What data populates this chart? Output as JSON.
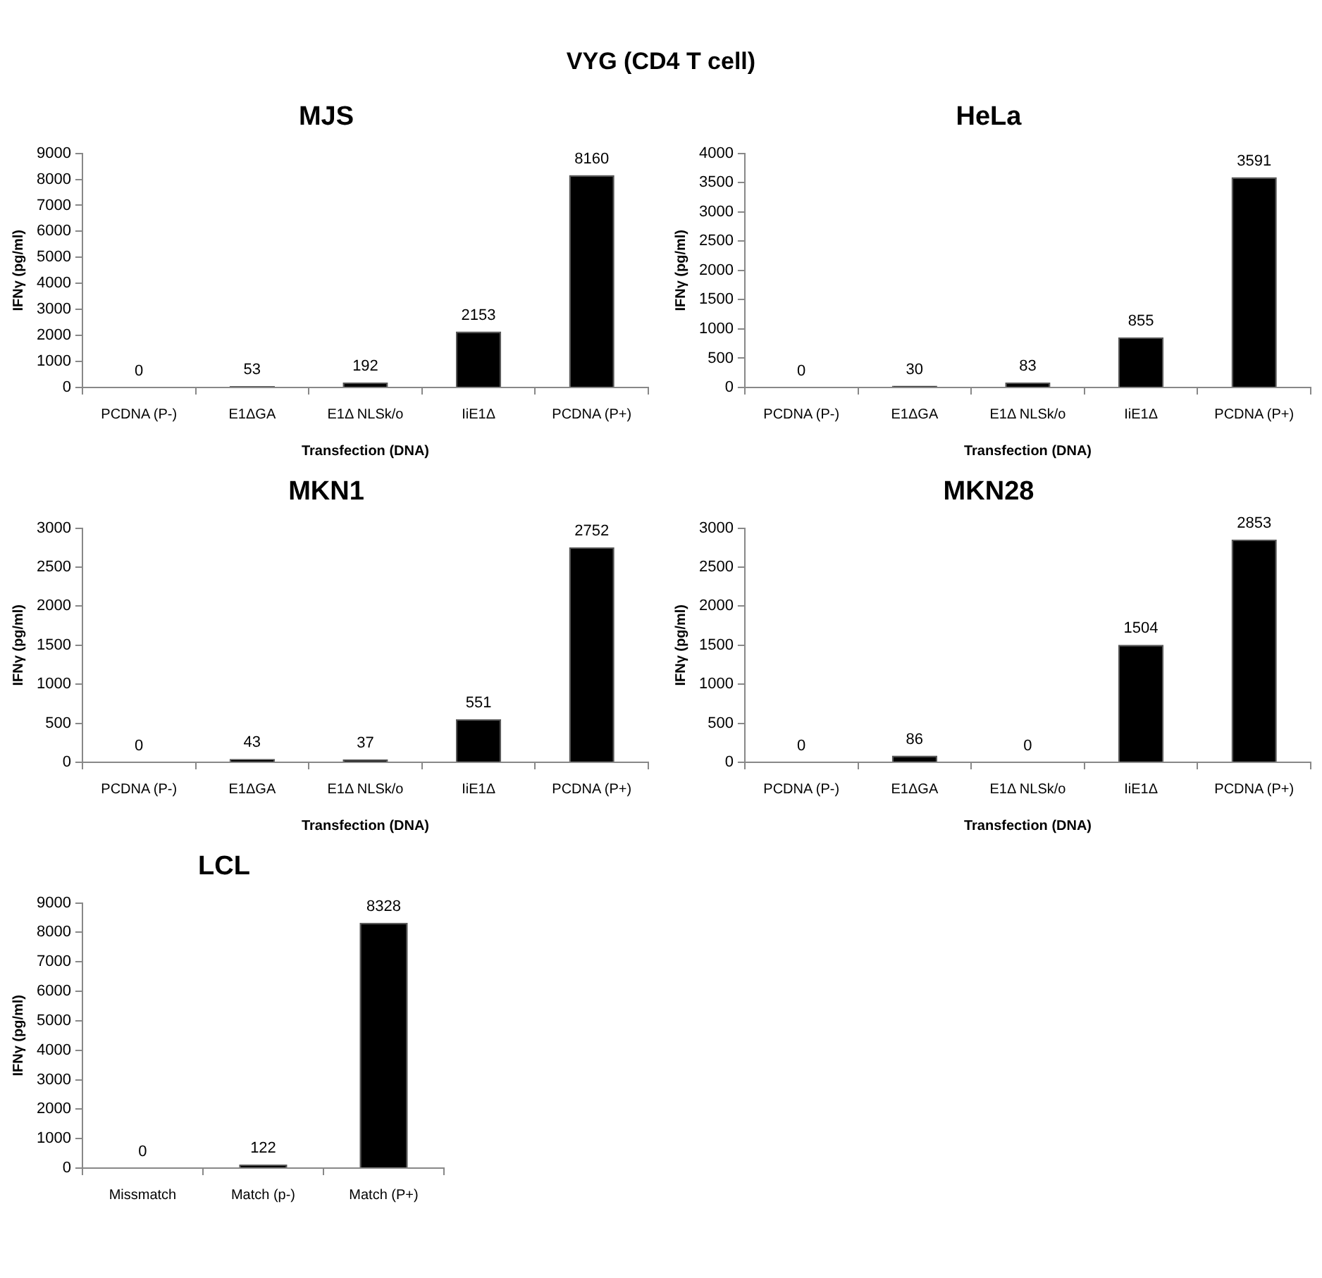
{
  "chart_data": [
    {
      "type": "other",
      "title": "VYG (CD4 T cell)"
    },
    {
      "type": "bar",
      "title": "MJS",
      "xlabel": "Transfection (DNA)",
      "ylabel": "IFNγ (pg/ml)",
      "categories": [
        "PCDNA (P-)",
        "E1ΔGA",
        "E1Δ NLSk/o",
        "IiE1Δ",
        "PCDNA (P+)"
      ],
      "values": [
        0,
        53,
        192,
        2153,
        8160
      ],
      "color": "#000000",
      "ylim": [
        0,
        9000
      ],
      "yticks": [
        0,
        1000,
        2000,
        3000,
        4000,
        5000,
        6000,
        7000,
        8000,
        9000
      ],
      "data_labels": true
    },
    {
      "type": "bar",
      "title": "HeLa",
      "xlabel": "Transfection (DNA)",
      "ylabel": "IFNγ (pg/ml)",
      "categories": [
        "PCDNA (P-)",
        "E1ΔGA",
        "E1Δ NLSk/o",
        "IiE1Δ",
        "PCDNA (P+)"
      ],
      "values": [
        0,
        30,
        83,
        855,
        3591
      ],
      "color": "#000000",
      "ylim": [
        0,
        4000
      ],
      "yticks": [
        0,
        500,
        1000,
        1500,
        2000,
        2500,
        3000,
        3500,
        4000
      ],
      "data_labels": true
    },
    {
      "type": "bar",
      "title": "MKN1",
      "xlabel": "Transfection (DNA)",
      "ylabel": "IFNγ (pg/ml)",
      "categories": [
        "PCDNA (P-)",
        "E1ΔGA",
        "E1Δ NLSk/o",
        "IiE1Δ",
        "PCDNA (P+)"
      ],
      "values": [
        0,
        43,
        37,
        551,
        2752
      ],
      "color": "#000000",
      "ylim": [
        0,
        3000
      ],
      "yticks": [
        0,
        500,
        1000,
        1500,
        2000,
        2500,
        3000
      ],
      "data_labels": true
    },
    {
      "type": "bar",
      "title": "MKN28",
      "xlabel": "Transfection (DNA)",
      "ylabel": "IFNγ (pg/ml)",
      "categories": [
        "PCDNA (P-)",
        "E1ΔGA",
        "E1Δ NLSk/o",
        "IiE1Δ",
        "PCDNA (P+)"
      ],
      "values": [
        0,
        86,
        0,
        1504,
        2853
      ],
      "color": "#000000",
      "ylim": [
        0,
        3000
      ],
      "yticks": [
        0,
        500,
        1000,
        1500,
        2000,
        2500,
        3000
      ],
      "data_labels": true
    },
    {
      "type": "bar",
      "title": "LCL",
      "ylabel": "IFNγ (pg/ml)",
      "categories": [
        "Missmatch",
        "Match (p-)",
        "Match (P+)"
      ],
      "values": [
        0,
        122,
        8328
      ],
      "color": "#000000",
      "ylim": [
        0,
        9000
      ],
      "yticks": [
        0,
        1000,
        2000,
        3000,
        4000,
        5000,
        6000,
        7000,
        8000,
        9000
      ],
      "data_labels": true
    }
  ]
}
